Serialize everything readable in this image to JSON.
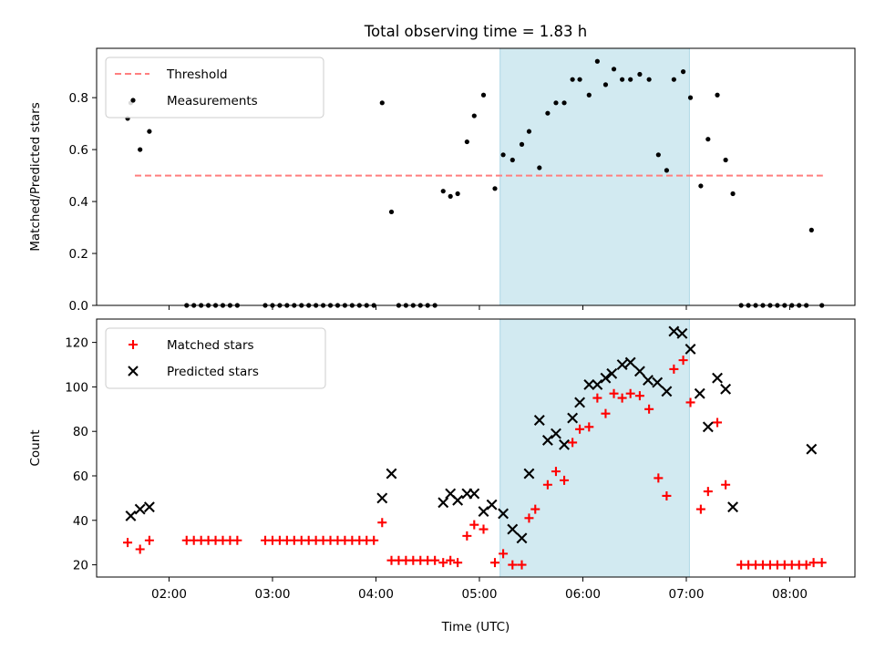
{
  "chart_data": [
    {
      "type": "scatter",
      "title": "Total observing time = 1.83 h",
      "xlabel": "",
      "ylabel": "Matched/Predicted stars",
      "xlim": [
        1.3,
        8.63
      ],
      "ylim": [
        0.0,
        0.99
      ],
      "y_ticks": [
        "0.0",
        "0.2",
        "0.4",
        "0.6",
        "0.8"
      ],
      "y_tick_values": [
        0.0,
        0.2,
        0.4,
        0.6,
        0.8
      ],
      "x_tick_values": [
        2,
        3,
        4,
        5,
        6,
        7,
        8
      ],
      "shaded_span": [
        5.2,
        7.03
      ],
      "shaded_color": "#add8e6",
      "legend_position": "upper left",
      "series": [
        {
          "name": "Threshold",
          "style": "dashed-line",
          "color": "#ff7f7f",
          "x": [
            1.67,
            8.32
          ],
          "y": [
            0.5,
            0.5
          ]
        },
        {
          "name": "Measurements",
          "style": "dot",
          "color": "#000000",
          "x": [
            1.6,
            1.63,
            1.72,
            1.81,
            2.17,
            2.24,
            2.31,
            2.38,
            2.45,
            2.52,
            2.59,
            2.66,
            2.93,
            3.0,
            3.07,
            3.14,
            3.21,
            3.28,
            3.35,
            3.42,
            3.49,
            3.56,
            3.63,
            3.7,
            3.77,
            3.84,
            3.91,
            3.98,
            4.06,
            4.15,
            4.22,
            4.29,
            4.36,
            4.43,
            4.5,
            4.57,
            4.65,
            4.72,
            4.79,
            4.88,
            4.95,
            5.04,
            5.15,
            5.23,
            5.32,
            5.41,
            5.48,
            5.58,
            5.66,
            5.74,
            5.82,
            5.9,
            5.97,
            6.06,
            6.14,
            6.22,
            6.3,
            6.38,
            6.46,
            6.55,
            6.64,
            6.73,
            6.81,
            6.88,
            6.97,
            7.04,
            7.14,
            7.21,
            7.3,
            7.38,
            7.45,
            7.53,
            7.6,
            7.67,
            7.74,
            7.81,
            7.88,
            7.95,
            8.02,
            8.09,
            8.16,
            8.21,
            8.31
          ],
          "y": [
            0.72,
            0.78,
            0.6,
            0.67,
            0.0,
            0.0,
            0.0,
            0.0,
            0.0,
            0.0,
            0.0,
            0.0,
            0.0,
            0.0,
            0.0,
            0.0,
            0.0,
            0.0,
            0.0,
            0.0,
            0.0,
            0.0,
            0.0,
            0.0,
            0.0,
            0.0,
            0.0,
            0.0,
            0.78,
            0.36,
            0.0,
            0.0,
            0.0,
            0.0,
            0.0,
            0.0,
            0.44,
            0.42,
            0.43,
            0.63,
            0.73,
            0.81,
            0.45,
            0.58,
            0.56,
            0.62,
            0.67,
            0.53,
            0.74,
            0.78,
            0.78,
            0.87,
            0.87,
            0.81,
            0.94,
            0.85,
            0.91,
            0.87,
            0.87,
            0.89,
            0.87,
            0.58,
            0.52,
            0.87,
            0.9,
            0.8,
            0.46,
            0.64,
            0.81,
            0.56,
            0.43,
            0.0,
            0.0,
            0.0,
            0.0,
            0.0,
            0.0,
            0.0,
            0.0,
            0.0,
            0.0,
            0.29,
            0.0
          ]
        }
      ]
    },
    {
      "type": "scatter",
      "title": "",
      "xlabel": "Time (UTC)",
      "ylabel": "Count",
      "xlim": [
        1.3,
        8.63
      ],
      "ylim": [
        14.5,
        130.5
      ],
      "y_ticks": [
        "20",
        "40",
        "60",
        "80",
        "100",
        "120"
      ],
      "y_tick_values": [
        20,
        40,
        60,
        80,
        100,
        120
      ],
      "x_ticks": [
        "02:00",
        "03:00",
        "04:00",
        "05:00",
        "06:00",
        "07:00",
        "08:00"
      ],
      "x_tick_values": [
        2,
        3,
        4,
        5,
        6,
        7,
        8
      ],
      "shaded_span": [
        5.2,
        7.03
      ],
      "shaded_color": "#add8e6",
      "legend_position": "upper left",
      "series": [
        {
          "name": "Matched stars",
          "style": "plus",
          "color": "#ff0000",
          "x": [
            1.6,
            1.72,
            1.81,
            2.17,
            2.24,
            2.31,
            2.38,
            2.45,
            2.52,
            2.59,
            2.66,
            2.93,
            3.0,
            3.07,
            3.14,
            3.21,
            3.28,
            3.35,
            3.42,
            3.49,
            3.56,
            3.63,
            3.7,
            3.77,
            3.84,
            3.91,
            3.98,
            4.06,
            4.15,
            4.22,
            4.29,
            4.36,
            4.43,
            4.5,
            4.57,
            4.65,
            4.72,
            4.79,
            4.88,
            4.95,
            5.04,
            5.15,
            5.23,
            5.32,
            5.41,
            5.48,
            5.54,
            5.66,
            5.74,
            5.82,
            5.9,
            5.97,
            6.06,
            6.14,
            6.22,
            6.3,
            6.38,
            6.46,
            6.55,
            6.64,
            6.73,
            6.81,
            6.88,
            6.97,
            7.04,
            7.14,
            7.21,
            7.3,
            7.38,
            7.53,
            7.6,
            7.67,
            7.74,
            7.81,
            7.88,
            7.95,
            8.02,
            8.09,
            8.16,
            8.23,
            8.31
          ],
          "y": [
            30,
            27,
            31,
            31,
            31,
            31,
            31,
            31,
            31,
            31,
            31,
            31,
            31,
            31,
            31,
            31,
            31,
            31,
            31,
            31,
            31,
            31,
            31,
            31,
            31,
            31,
            31,
            39,
            22,
            22,
            22,
            22,
            22,
            22,
            22,
            21,
            22,
            21,
            33,
            38,
            36,
            21,
            25,
            20,
            20,
            41,
            45,
            56,
            62,
            58,
            75,
            81,
            82,
            95,
            88,
            97,
            95,
            97,
            96,
            90,
            59,
            51,
            108,
            112,
            93,
            45,
            53,
            84,
            56,
            20,
            20,
            20,
            20,
            20,
            20,
            20,
            20,
            20,
            20,
            21,
            21
          ]
        },
        {
          "name": "Predicted stars",
          "style": "x",
          "color": "#000000",
          "x": [
            1.63,
            1.72,
            1.81,
            4.06,
            4.15,
            4.65,
            4.72,
            4.79,
            4.88,
            4.95,
            5.04,
            5.12,
            5.23,
            5.32,
            5.41,
            5.48,
            5.58,
            5.66,
            5.74,
            5.82,
            5.9,
            5.97,
            6.06,
            6.14,
            6.22,
            6.28,
            6.38,
            6.46,
            6.55,
            6.63,
            6.72,
            6.81,
            6.88,
            6.96,
            7.04,
            7.13,
            7.21,
            7.3,
            7.38,
            7.45,
            8.21
          ],
          "y": [
            42,
            45,
            46,
            50,
            61,
            48,
            52,
            49,
            52,
            52,
            44,
            47,
            43,
            36,
            32,
            61,
            85,
            76,
            79,
            74,
            86,
            93,
            101,
            101,
            104,
            106,
            110,
            111,
            107,
            103,
            102,
            98,
            125,
            124,
            117,
            97,
            82,
            104,
            99,
            46,
            72
          ]
        }
      ]
    }
  ]
}
